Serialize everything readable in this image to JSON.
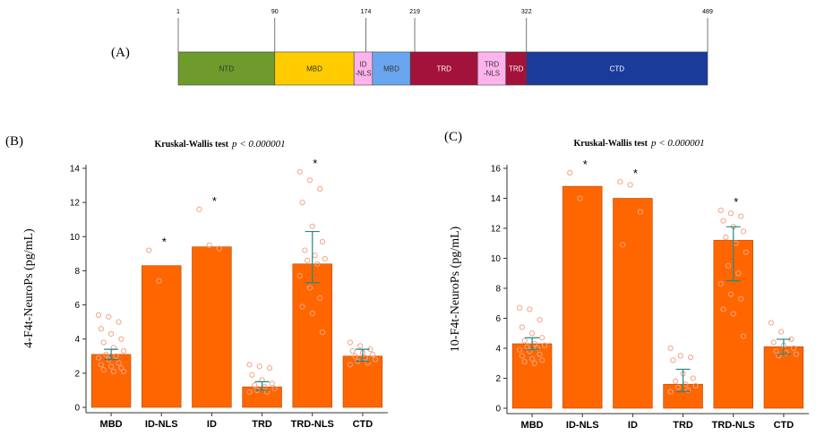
{
  "domain_structure": {
    "panel_label": "(A)",
    "positions": [
      "1",
      "90",
      "174",
      "219",
      "322",
      "489"
    ],
    "segments": [
      {
        "label": "NTD",
        "start": 1,
        "end": 90,
        "color": "#6e9b2c"
      },
      {
        "label": "MBD",
        "start": 90,
        "end": 163,
        "color": "#ffcc00"
      },
      {
        "label": "ID\n-NLS",
        "start": 163,
        "end": 180,
        "color": "#ffb3ec"
      },
      {
        "label": "MBD",
        "start": 180,
        "end": 215,
        "color": "#6aa6ef"
      },
      {
        "label": "TRD",
        "start": 215,
        "end": 277,
        "color": "#a3123a"
      },
      {
        "label": "TRD\n-NLS",
        "start": 277,
        "end": 303,
        "color": "#ffb3ec"
      },
      {
        "label": "TRD",
        "start": 303,
        "end": 322,
        "color": "#a3123a"
      },
      {
        "label": "CTD",
        "start": 322,
        "end": 489,
        "color": "#1b3b9b"
      }
    ],
    "position_marks": [
      1,
      90,
      174,
      219,
      322,
      489
    ]
  },
  "chart_data": [
    {
      "type": "bar",
      "panel_label": "(B)",
      "title_prefix": "Kruskal-Wallis test",
      "title_stat": "p < 0.000001",
      "ylabel": "4-F4t-NeuroPs (pg/mL)",
      "ylim": [
        0,
        14
      ],
      "yticks": [
        0,
        2,
        4,
        6,
        8,
        10,
        12,
        14
      ],
      "categories": [
        "MBD",
        "ID-NLS",
        "ID",
        "TRD",
        "TRD-NLS",
        "CTD"
      ],
      "values": [
        3.1,
        8.3,
        9.4,
        1.2,
        8.4,
        3.0
      ],
      "errors": [
        [
          2.8,
          3.4
        ],
        null,
        null,
        [
          1.0,
          1.5
        ],
        [
          7.3,
          10.3
        ],
        [
          2.7,
          3.4
        ]
      ],
      "significant": [
        false,
        true,
        true,
        false,
        true,
        false
      ],
      "points": [
        [
          5.4,
          5.3,
          5.0,
          4.6,
          4.3,
          4.0,
          3.8,
          3.5,
          3.3,
          3.1,
          3.0,
          2.9,
          2.8,
          2.6,
          2.5,
          2.4,
          2.3,
          2.2,
          2.1,
          2.1
        ],
        [
          9.2,
          7.4
        ],
        [
          11.6,
          9.5,
          9.3
        ],
        [
          2.5,
          2.4,
          2.3,
          1.9,
          1.6,
          1.4,
          1.3,
          1.2,
          1.1,
          1.0,
          0.9,
          0.9
        ],
        [
          13.8,
          13.3,
          12.8,
          12.0,
          10.6,
          9.7,
          9.2,
          8.9,
          8.7,
          8.6,
          8.4,
          7.7,
          7.0,
          6.4,
          5.9,
          5.5,
          4.4
        ],
        [
          3.8,
          3.6,
          3.4,
          3.3,
          3.2,
          3.1,
          3.0,
          2.9,
          2.8,
          2.7,
          2.6,
          2.5
        ]
      ]
    },
    {
      "type": "bar",
      "panel_label": "(C)",
      "title_prefix": "Kruskal-Wallis test",
      "title_stat": "p < 0.000001",
      "ylabel": "10-F4t-NeuroPs (pg/mL)",
      "ylim": [
        0,
        16
      ],
      "yticks": [
        0,
        2,
        4,
        6,
        8,
        10,
        12,
        14,
        16
      ],
      "categories": [
        "MBD",
        "ID-NLS",
        "ID",
        "TRD",
        "TRD-NLS",
        "CTD"
      ],
      "values": [
        4.3,
        14.8,
        14.0,
        1.6,
        11.2,
        4.1
      ],
      "errors": [
        [
          3.9,
          4.7
        ],
        null,
        null,
        [
          1.1,
          2.6
        ],
        [
          8.5,
          12.1
        ],
        [
          3.6,
          4.6
        ]
      ],
      "significant": [
        false,
        true,
        true,
        false,
        true,
        false
      ],
      "points": [
        [
          6.7,
          6.6,
          5.9,
          5.4,
          5.0,
          4.7,
          4.5,
          4.3,
          4.2,
          4.1,
          4.0,
          3.9,
          3.8,
          3.6,
          3.5,
          3.3,
          3.2,
          3.1,
          3.0
        ],
        [
          15.7,
          14.0
        ],
        [
          15.1,
          14.9,
          13.1,
          10.9
        ],
        [
          4.0,
          3.5,
          3.4,
          3.2,
          2.3,
          2.0,
          1.8,
          1.6,
          1.5,
          1.4,
          1.2,
          1.1
        ],
        [
          13.2,
          13.0,
          12.8,
          12.5,
          12.1,
          11.8,
          11.4,
          11.0,
          10.4,
          9.5,
          9.0,
          8.3,
          7.6,
          7.3,
          6.6,
          6.3,
          4.8
        ],
        [
          5.7,
          5.1,
          4.6,
          4.4,
          4.2,
          4.0,
          3.8,
          3.7,
          3.6,
          3.5
        ]
      ]
    }
  ],
  "colors": {
    "bar_fill": "#ff6600",
    "bar_stroke": "#b34400",
    "point_stroke": "#f4a582",
    "error_bar": "#1f8a8a"
  }
}
